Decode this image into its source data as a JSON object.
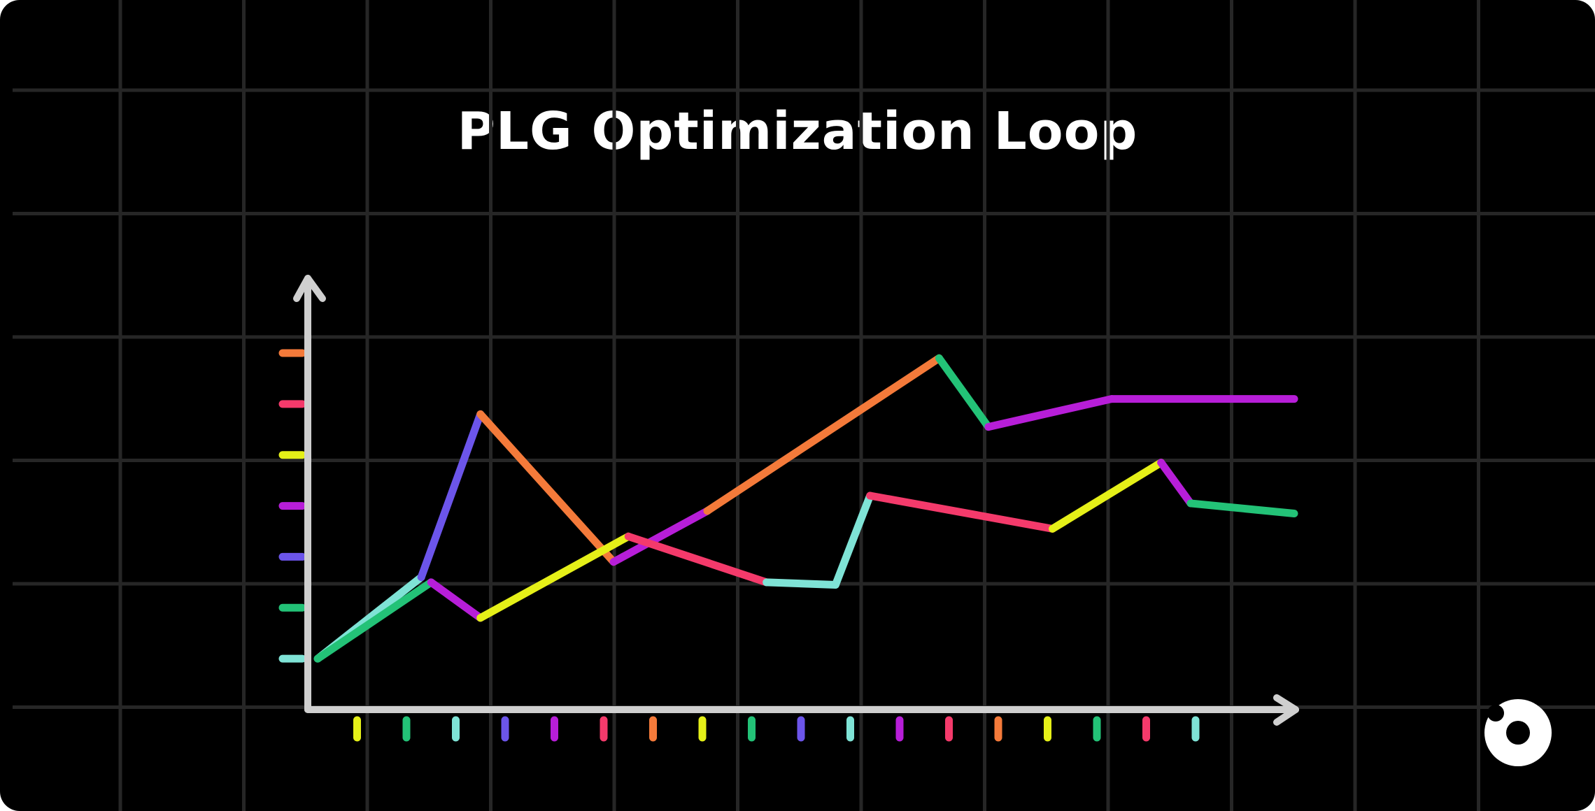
{
  "chart_data": {
    "type": "line",
    "title": "PLG Optimization Loop",
    "xlabel": "",
    "ylabel": "",
    "xlim": [
      0,
      20
    ],
    "ylim": [
      0,
      7
    ],
    "grid": true,
    "x_tick_colors": [
      "#E5F018",
      "#23C277",
      "#7FE3D6",
      "#6C55EA",
      "#B71ED8",
      "#F43A6B",
      "#F47A3A",
      "#E5F018",
      "#23C277",
      "#6C55EA",
      "#7FE3D6",
      "#B71ED8",
      "#F43A6B",
      "#F47A3A",
      "#E5F018",
      "#23C277",
      "#F43A6B",
      "#7FE3D6"
    ],
    "y_tick_colors": [
      "#7FE3D6",
      "#23C277",
      "#6C55EA",
      "#B71ED8",
      "#E5F018",
      "#F43A6B",
      "#F47A3A"
    ],
    "series": [
      {
        "x": [
          0.2,
          2.3,
          3.5,
          6.2,
          8.1,
          12.8,
          13.8,
          16.3,
          20
        ],
        "y": [
          1.0,
          2.6,
          5.8,
          2.9,
          3.9,
          6.9,
          5.55,
          6.1,
          6.1
        ],
        "segment_colors": [
          "#7FE3D6",
          "#6C55EA",
          "#F47A3A",
          "#B71ED8",
          "#F47A3A",
          "#23C277",
          "#B71ED8",
          "#B71ED8"
        ]
      },
      {
        "x": [
          0.2,
          2.5,
          3.5,
          6.5,
          9.3,
          10.7,
          11.4,
          15.1,
          17.3,
          17.9,
          20
        ],
        "y": [
          1.0,
          2.5,
          1.8,
          3.4,
          2.5,
          2.45,
          4.2,
          3.55,
          4.85,
          4.05,
          3.85
        ],
        "segment_colors": [
          "#23C277",
          "#B71ED8",
          "#E5F018",
          "#F43A6B",
          "#7FE3D6",
          "#7FE3D6",
          "#F43A6B",
          "#E5F018",
          "#B71ED8",
          "#23C277"
        ]
      }
    ]
  }
}
